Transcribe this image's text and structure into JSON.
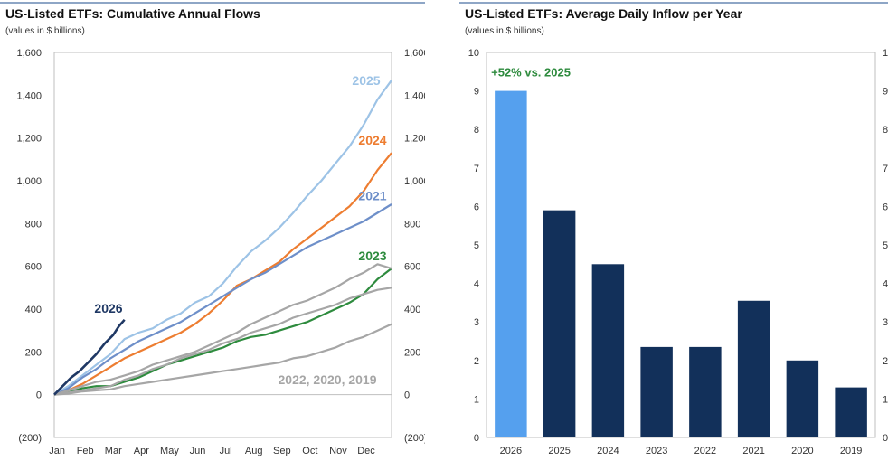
{
  "left_panel": {
    "title": "US-Listed ETFs: Cumulative Annual Flows",
    "subtitle": "(values in $ billions)"
  },
  "right_panel": {
    "title": "US-Listed ETFs: Average Daily Inflow per Year",
    "subtitle": "(values in $ billions)"
  },
  "chart_data": [
    {
      "type": "line",
      "title": "US-Listed ETFs: Cumulative Annual Flows",
      "subtitle": "(values in $ billions)",
      "x_ticks": [
        "Jan",
        "Feb",
        "Mar",
        "Apr",
        "May",
        "Jun",
        "Jul",
        "Aug",
        "Sep",
        "Oct",
        "Nov",
        "Dec"
      ],
      "y_ticks": [
        "(200)",
        "0",
        "200",
        "400",
        "600",
        "800",
        "1,000",
        "1,200",
        "1,400",
        "1,600"
      ],
      "ylim": [
        -200,
        1600
      ],
      "x_unit": "month (0 = start of Jan, 12 = end of Dec)",
      "grid": false,
      "series": [
        {
          "name": "2025",
          "color": "#9dc3e6",
          "x": [
            0,
            0.5,
            1,
            1.5,
            2,
            2.5,
            3,
            3.5,
            4,
            4.5,
            5,
            5.5,
            6,
            6.5,
            7,
            7.5,
            8,
            8.5,
            9,
            9.5,
            10,
            10.5,
            11,
            11.5,
            12
          ],
          "y": [
            0,
            40,
            90,
            140,
            190,
            260,
            290,
            310,
            350,
            380,
            430,
            460,
            520,
            600,
            670,
            720,
            780,
            850,
            930,
            1000,
            1080,
            1160,
            1260,
            1380,
            1470
          ]
        },
        {
          "name": "2024",
          "color": "#ed7d31",
          "x": [
            0,
            0.5,
            1,
            1.5,
            2,
            2.5,
            3,
            3.5,
            4,
            4.5,
            5,
            5.5,
            6,
            6.5,
            7,
            7.5,
            8,
            8.5,
            9,
            9.5,
            10,
            10.5,
            11,
            11.5,
            12
          ],
          "y": [
            0,
            20,
            50,
            90,
            130,
            170,
            200,
            230,
            260,
            290,
            330,
            380,
            440,
            510,
            540,
            580,
            620,
            680,
            730,
            780,
            830,
            880,
            950,
            1050,
            1130
          ]
        },
        {
          "name": "2021",
          "color": "#6e8fc9",
          "x": [
            0,
            0.5,
            1,
            1.5,
            2,
            2.5,
            3,
            3.5,
            4,
            4.5,
            5,
            5.5,
            6,
            6.5,
            7,
            7.5,
            8,
            8.5,
            9,
            9.5,
            10,
            10.5,
            11,
            11.5,
            12
          ],
          "y": [
            0,
            30,
            80,
            120,
            170,
            210,
            250,
            280,
            310,
            340,
            380,
            420,
            460,
            500,
            540,
            570,
            610,
            650,
            690,
            720,
            750,
            780,
            810,
            850,
            890
          ]
        },
        {
          "name": "2023",
          "color": "#2e8b3e",
          "x": [
            0,
            0.5,
            1,
            1.5,
            2,
            2.5,
            3,
            3.5,
            4,
            4.5,
            5,
            5.5,
            6,
            6.5,
            7,
            7.5,
            8,
            8.5,
            9,
            9.5,
            10,
            10.5,
            11,
            11.5,
            12
          ],
          "y": [
            0,
            10,
            30,
            40,
            40,
            60,
            80,
            110,
            140,
            160,
            180,
            200,
            220,
            250,
            270,
            280,
            300,
            320,
            340,
            370,
            400,
            430,
            470,
            540,
            590
          ]
        },
        {
          "name": "2022",
          "color": "#a6a6a6",
          "x": [
            0,
            0.5,
            1,
            1.5,
            2,
            2.5,
            3,
            3.5,
            4,
            4.5,
            5,
            5.5,
            6,
            6.5,
            7,
            7.5,
            8,
            8.5,
            9,
            9.5,
            10,
            10.5,
            11,
            11.5,
            12
          ],
          "y": [
            0,
            20,
            40,
            60,
            70,
            90,
            110,
            140,
            160,
            180,
            200,
            230,
            260,
            290,
            330,
            360,
            390,
            420,
            440,
            470,
            500,
            540,
            570,
            610,
            590
          ]
        },
        {
          "name": "2020",
          "color": "#a6a6a6",
          "x": [
            0,
            0.5,
            1,
            1.5,
            2,
            2.5,
            3,
            3.5,
            4,
            4.5,
            5,
            5.5,
            6,
            6.5,
            7,
            7.5,
            8,
            8.5,
            9,
            9.5,
            10,
            10.5,
            11,
            11.5,
            12
          ],
          "y": [
            0,
            10,
            20,
            30,
            40,
            70,
            90,
            120,
            140,
            170,
            190,
            210,
            240,
            260,
            290,
            310,
            330,
            360,
            380,
            400,
            420,
            450,
            470,
            490,
            500
          ]
        },
        {
          "name": "2019",
          "color": "#a6a6a6",
          "x": [
            0,
            0.5,
            1,
            1.5,
            2,
            2.5,
            3,
            3.5,
            4,
            4.5,
            5,
            5.5,
            6,
            6.5,
            7,
            7.5,
            8,
            8.5,
            9,
            9.5,
            10,
            10.5,
            11,
            11.5,
            12
          ],
          "y": [
            0,
            5,
            15,
            20,
            25,
            40,
            50,
            60,
            70,
            80,
            90,
            100,
            110,
            120,
            130,
            140,
            150,
            170,
            180,
            200,
            220,
            250,
            270,
            300,
            330
          ]
        },
        {
          "name": "2026",
          "color": "#1f3864",
          "x": [
            0,
            0.3,
            0.6,
            0.9,
            1.2,
            1.5,
            1.8,
            2.1,
            2.3,
            2.5
          ],
          "y": [
            0,
            40,
            80,
            110,
            150,
            190,
            240,
            280,
            320,
            350
          ]
        }
      ],
      "annotations": [
        "2025",
        "2024",
        "2021",
        "2023",
        "2026",
        "2022, 2020, 2019"
      ]
    },
    {
      "type": "bar",
      "title": "US-Listed ETFs: Average Daily Inflow per Year",
      "subtitle": "(values in $ billions)",
      "categories": [
        "2026",
        "2025",
        "2024",
        "2023",
        "2022",
        "2021",
        "2020",
        "2019"
      ],
      "values": [
        9.0,
        5.9,
        4.5,
        2.35,
        2.35,
        3.55,
        2.0,
        1.3
      ],
      "colors": [
        "#55a0ee",
        "#12305a",
        "#12305a",
        "#12305a",
        "#12305a",
        "#12305a",
        "#12305a",
        "#12305a"
      ],
      "ylim": [
        0,
        10
      ],
      "y_ticks": [
        "0",
        "1",
        "2",
        "3",
        "4",
        "5",
        "6",
        "7",
        "8",
        "9",
        "10"
      ],
      "grid": false,
      "annotations": [
        "+52% vs. 2025"
      ]
    }
  ]
}
